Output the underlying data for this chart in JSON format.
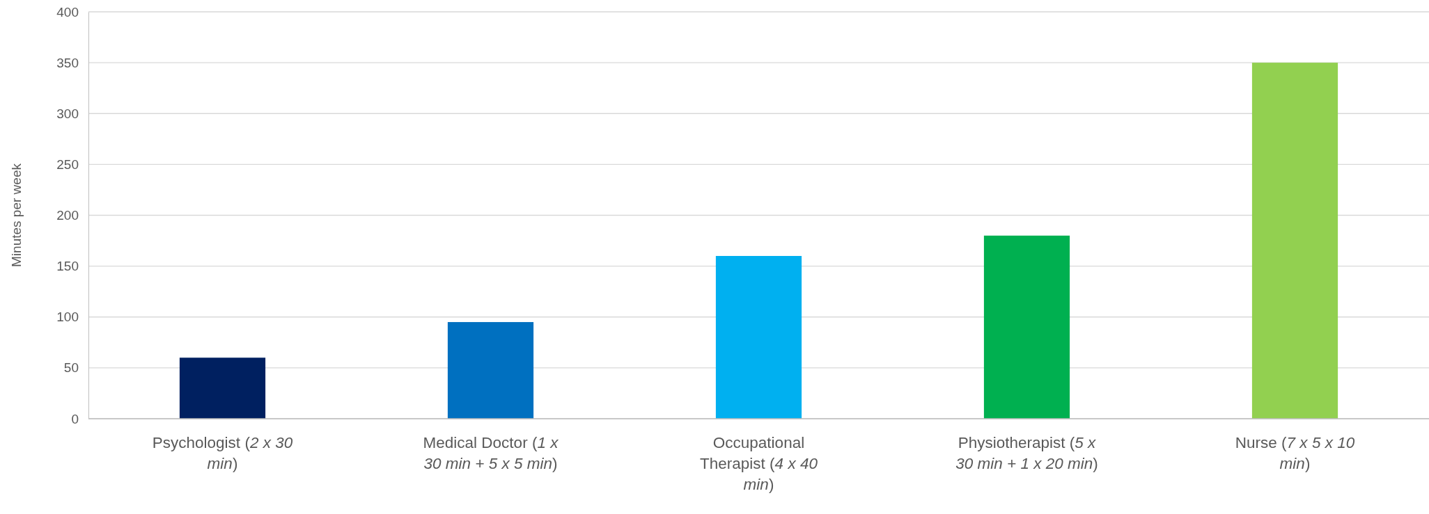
{
  "chart_data": {
    "type": "bar",
    "ylabel": "Minutes per week",
    "categories": [
      "Psychologist (2 x 30 min)",
      "Medical Doctor (1 x 30 min + 5 x 5 min)",
      "Occupational Therapist (4 x 40 min)",
      "Physiotherapist (5 x 30 min + 1 x 20 min)",
      "Nurse (7 x 5 x 10 min)"
    ],
    "values": [
      60,
      95,
      160,
      180,
      350
    ],
    "colors": [
      "#002060",
      "#0070c0",
      "#00b0f0",
      "#00b050",
      "#92d050"
    ],
    "ylim": [
      0,
      400
    ],
    "yticks": [
      0,
      50,
      100,
      150,
      200,
      250,
      300,
      350,
      400
    ],
    "grid": "y"
  }
}
